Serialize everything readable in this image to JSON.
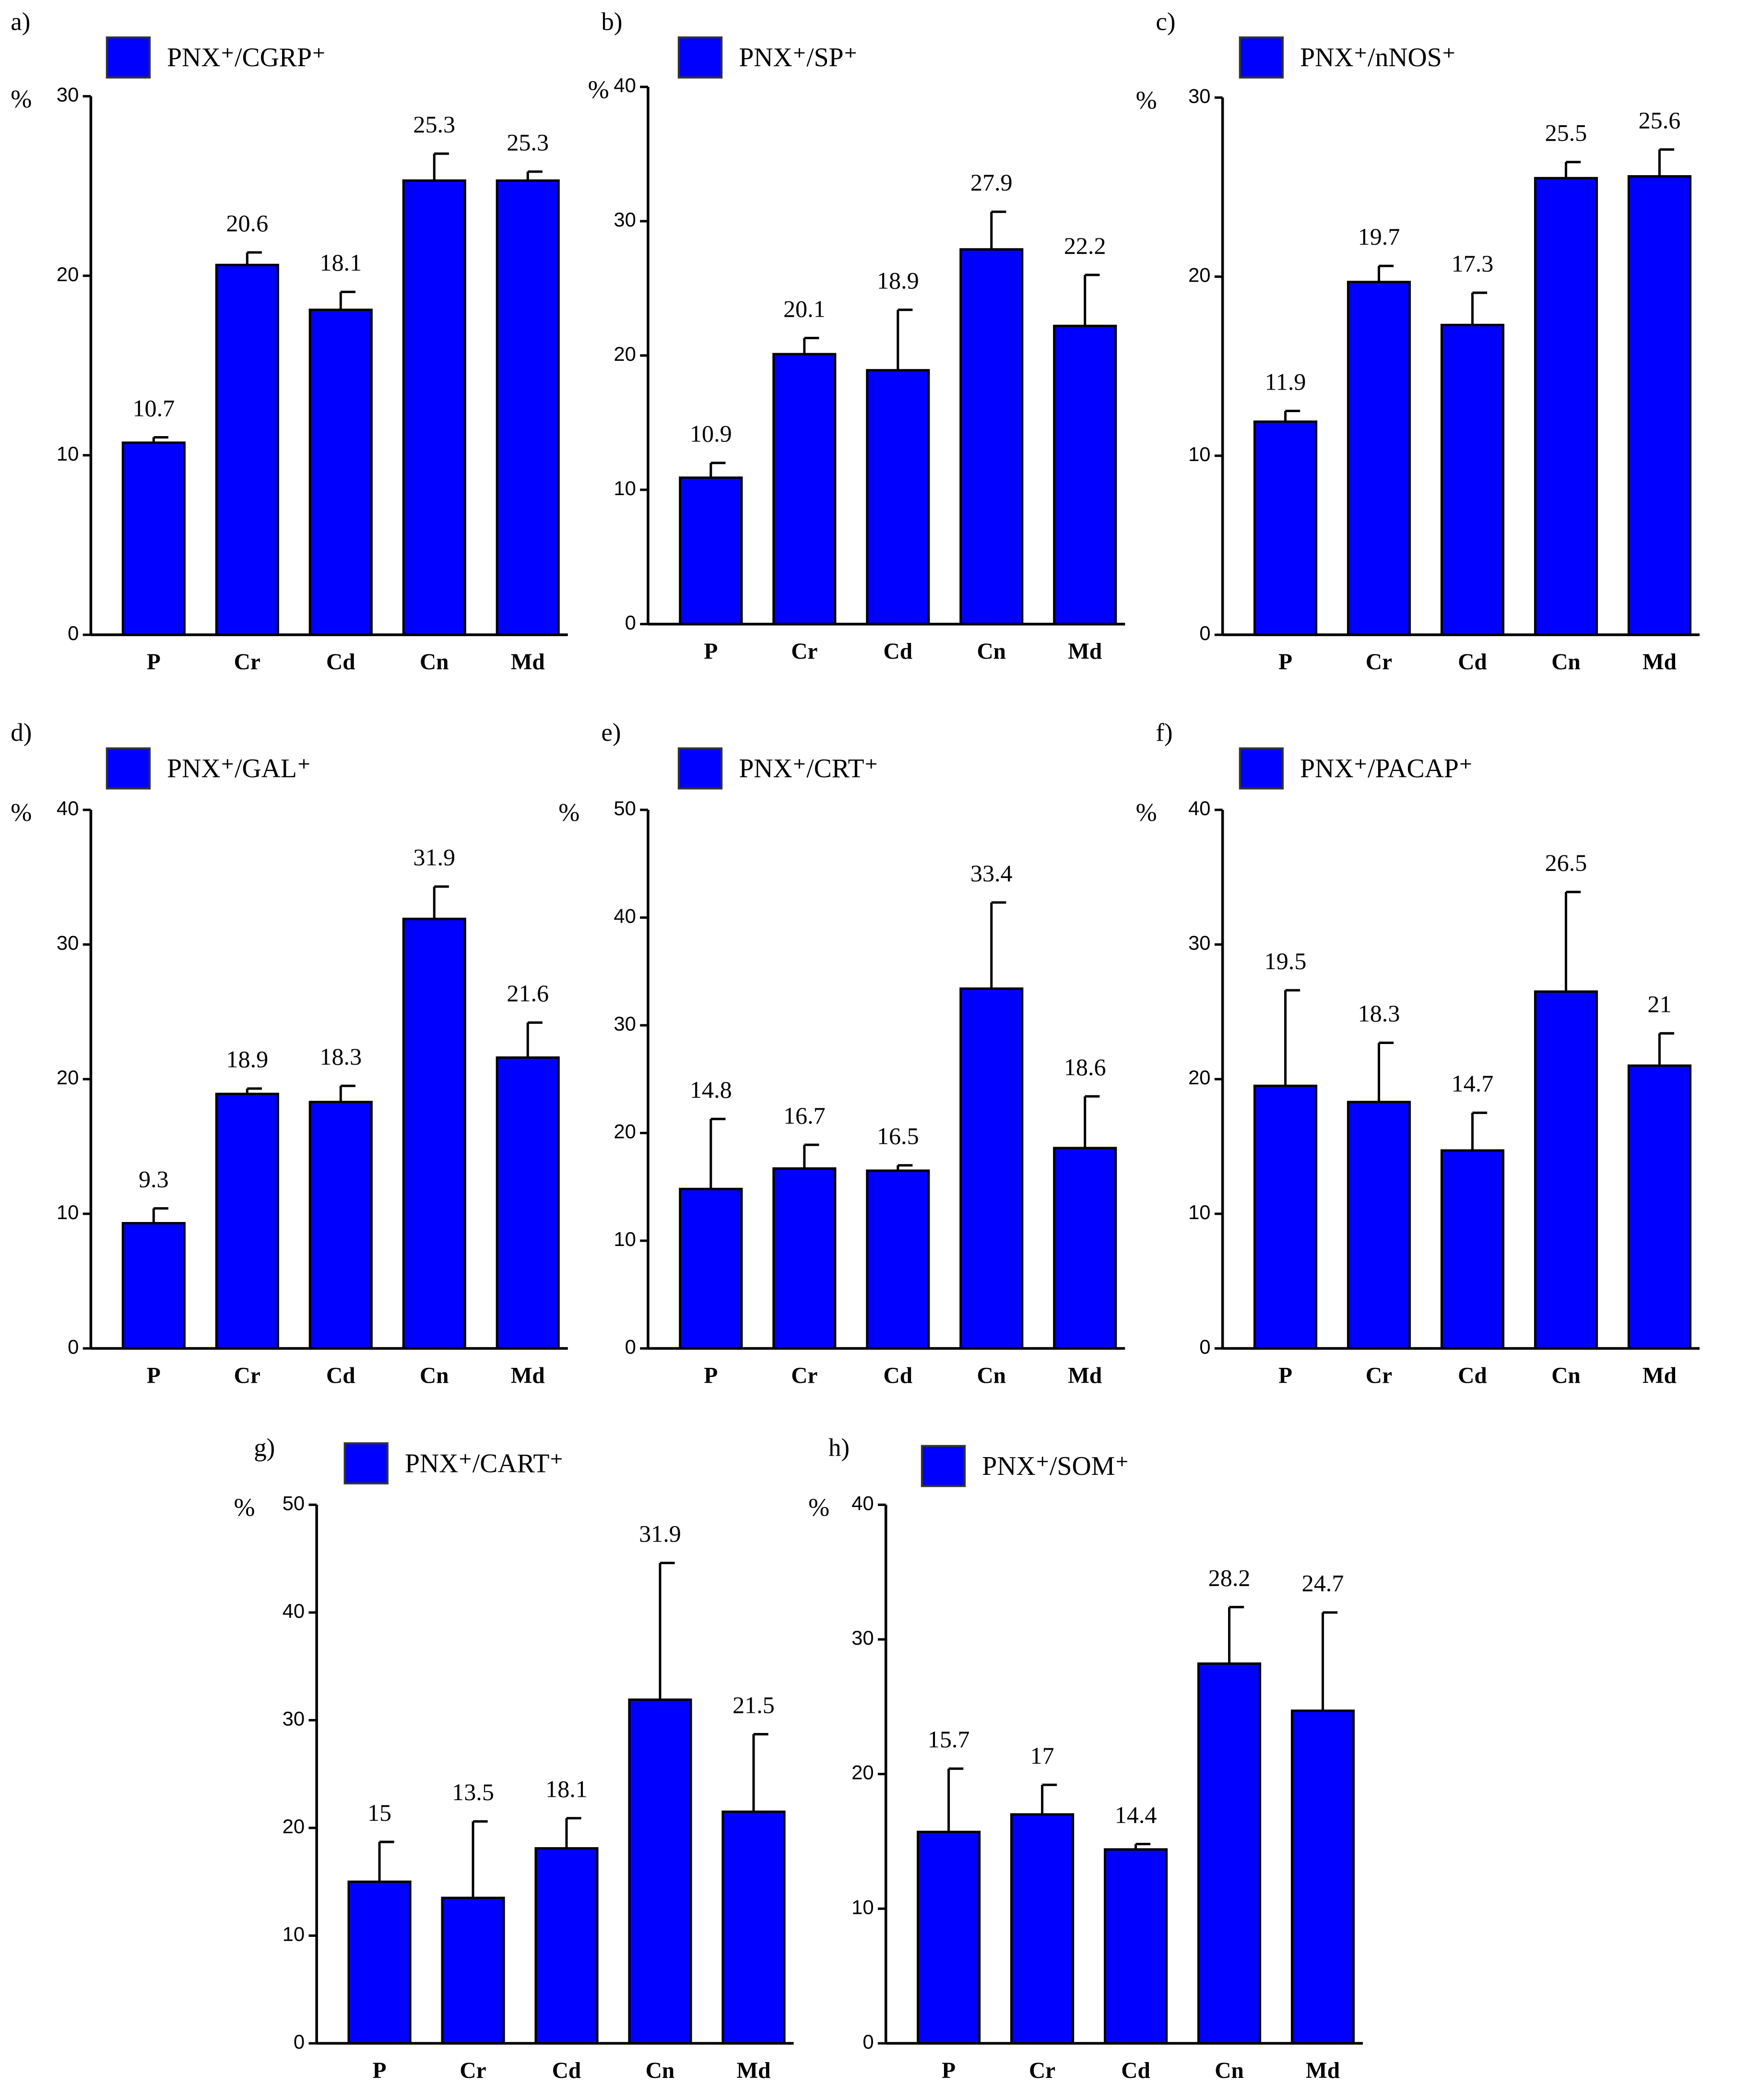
{
  "chart_data": [
    {
      "type": "bar",
      "panel": "a)",
      "y_label": "%",
      "categories": [
        "P",
        "Cr",
        "Cd",
        "Cn",
        "Md"
      ],
      "series": [
        {
          "name": "PNX⁺/CGRP⁺",
          "color": "#0000ff",
          "values": [
            10.7,
            20.6,
            18.1,
            25.3,
            25.3
          ],
          "errors": [
            0.3,
            0.7,
            1.0,
            1.5,
            0.5
          ]
        }
      ],
      "ylim": [
        0,
        30
      ],
      "yticks": [
        0,
        10,
        20,
        30
      ]
    },
    {
      "type": "bar",
      "panel": "b)",
      "y_label": "%",
      "categories": [
        "P",
        "Cr",
        "Cd",
        "Cn",
        "Md"
      ],
      "series": [
        {
          "name": "PNX⁺/SP⁺",
          "color": "#0000ff",
          "values": [
            10.9,
            20.1,
            18.9,
            27.9,
            22.2
          ],
          "errors": [
            1.1,
            1.2,
            4.5,
            2.8,
            3.8
          ]
        }
      ],
      "ylim": [
        0,
        40
      ],
      "yticks": [
        0,
        10,
        20,
        30,
        40
      ]
    },
    {
      "type": "bar",
      "panel": "c)",
      "y_label": "%",
      "categories": [
        "P",
        "Cr",
        "Cd",
        "Cn",
        "Md"
      ],
      "series": [
        {
          "name": "PNX⁺/nNOS⁺",
          "color": "#0000ff",
          "values": [
            11.9,
            19.7,
            17.3,
            25.5,
            25.6
          ],
          "errors": [
            0.6,
            0.9,
            1.8,
            0.9,
            1.5
          ]
        }
      ],
      "ylim": [
        0,
        30
      ],
      "yticks": [
        0,
        10,
        20,
        30
      ]
    },
    {
      "type": "bar",
      "panel": "d)",
      "y_label": "%",
      "categories": [
        "P",
        "Cr",
        "Cd",
        "Cn",
        "Md"
      ],
      "series": [
        {
          "name": "PNX⁺/GAL⁺",
          "color": "#0000ff",
          "values": [
            9.3,
            18.9,
            18.3,
            31.9,
            21.6
          ],
          "errors": [
            1.1,
            0.4,
            1.2,
            2.4,
            2.6
          ]
        }
      ],
      "ylim": [
        0,
        40
      ],
      "yticks": [
        0,
        10,
        20,
        30,
        40
      ]
    },
    {
      "type": "bar",
      "panel": "e)",
      "y_label": "%",
      "categories": [
        "P",
        "Cr",
        "Cd",
        "Cn",
        "Md"
      ],
      "series": [
        {
          "name": "PNX⁺/CRT⁺",
          "color": "#0000ff",
          "values": [
            14.8,
            16.7,
            16.5,
            33.4,
            18.6
          ],
          "errors": [
            6.5,
            2.2,
            0.5,
            8.0,
            4.8
          ]
        }
      ],
      "ylim": [
        0,
        50
      ],
      "yticks": [
        0,
        10,
        20,
        30,
        40,
        50
      ]
    },
    {
      "type": "bar",
      "panel": "f)",
      "y_label": "%",
      "categories": [
        "P",
        "Cr",
        "Cd",
        "Cn",
        "Md"
      ],
      "series": [
        {
          "name": "PNX⁺/PACAP⁺",
          "color": "#0000ff",
          "values": [
            19.5,
            18.3,
            14.7,
            26.5,
            21
          ],
          "errors": [
            7.1,
            4.4,
            2.8,
            7.4,
            2.4
          ]
        }
      ],
      "ylim": [
        0,
        40
      ],
      "yticks": [
        0,
        10,
        20,
        30,
        40
      ]
    },
    {
      "type": "bar",
      "panel": "g)",
      "y_label": "%",
      "categories": [
        "P",
        "Cr",
        "Cd",
        "Cn",
        "Md"
      ],
      "series": [
        {
          "name": "PNX⁺/CART⁺",
          "color": "#0000ff",
          "values": [
            15,
            13.5,
            18.1,
            31.9,
            21.5
          ],
          "errors": [
            3.7,
            7.1,
            2.8,
            12.7,
            7.2
          ]
        }
      ],
      "ylim": [
        0,
        50
      ],
      "yticks": [
        0,
        10,
        20,
        30,
        40,
        50
      ]
    },
    {
      "type": "bar",
      "panel": "h)",
      "y_label": "%",
      "categories": [
        "P",
        "Cr",
        "Cd",
        "Cn",
        "Md"
      ],
      "series": [
        {
          "name": "PNX⁺/SOM⁺",
          "color": "#0000ff",
          "values": [
            15.7,
            17,
            14.4,
            28.2,
            24.7
          ],
          "errors": [
            4.7,
            2.2,
            0.4,
            4.2,
            7.3
          ]
        }
      ],
      "ylim": [
        0,
        40
      ],
      "yticks": [
        0,
        10,
        20,
        30,
        40
      ]
    }
  ]
}
